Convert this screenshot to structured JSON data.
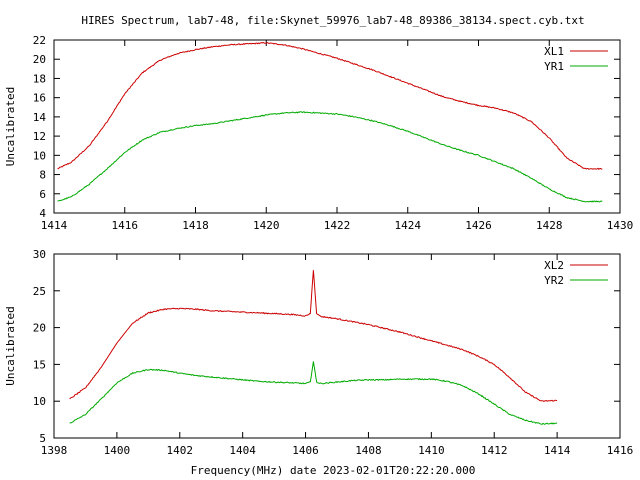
{
  "title": "HIRES Spectrum, lab7-48, file:Skynet_59976_lab7-48_89386_38134.spect.cyb.txt",
  "xlabel_bottom": "Frequency(MHz) date 2023-02-01T20:22:20.000",
  "chart_data": [
    {
      "type": "line",
      "ylabel": "Uncalibrated",
      "xlim": [
        1414,
        1430
      ],
      "ylim": [
        4,
        22
      ],
      "xticks": [
        1414,
        1416,
        1418,
        1420,
        1422,
        1424,
        1426,
        1428,
        1430
      ],
      "yticks": [
        4,
        6,
        8,
        10,
        12,
        14,
        16,
        18,
        20,
        22
      ],
      "legend_position": "top-right",
      "series": [
        {
          "name": "XL1",
          "color": "#cc0000",
          "x": [
            1414.1,
            1414.5,
            1415.0,
            1415.5,
            1416.0,
            1416.5,
            1417.0,
            1417.5,
            1418.0,
            1418.5,
            1419.0,
            1419.5,
            1420.0,
            1420.5,
            1421.0,
            1421.5,
            1422.0,
            1422.5,
            1423.0,
            1423.5,
            1424.0,
            1424.5,
            1425.0,
            1425.5,
            1426.0,
            1426.5,
            1427.0,
            1427.5,
            1428.0,
            1428.5,
            1429.0,
            1429.5
          ],
          "values": [
            8.6,
            9.3,
            11.0,
            13.5,
            16.4,
            18.6,
            19.9,
            20.6,
            21.0,
            21.3,
            21.5,
            21.6,
            21.7,
            21.5,
            21.1,
            20.6,
            20.1,
            19.5,
            18.9,
            18.2,
            17.5,
            16.8,
            16.1,
            15.6,
            15.2,
            14.9,
            14.4,
            13.5,
            11.8,
            9.7,
            8.6,
            8.6
          ]
        },
        {
          "name": "YR1",
          "color": "#00aa00",
          "x": [
            1414.1,
            1414.5,
            1415.0,
            1415.5,
            1416.0,
            1416.5,
            1417.0,
            1417.5,
            1418.0,
            1418.5,
            1419.0,
            1419.5,
            1420.0,
            1420.5,
            1421.0,
            1421.5,
            1422.0,
            1422.5,
            1423.0,
            1423.5,
            1424.0,
            1424.5,
            1425.0,
            1425.5,
            1426.0,
            1426.5,
            1427.0,
            1427.5,
            1428.0,
            1428.5,
            1429.0,
            1429.5
          ],
          "values": [
            5.2,
            5.7,
            7.0,
            8.6,
            10.3,
            11.6,
            12.4,
            12.8,
            13.1,
            13.3,
            13.6,
            13.9,
            14.2,
            14.4,
            14.5,
            14.4,
            14.3,
            14.0,
            13.6,
            13.1,
            12.5,
            11.8,
            11.1,
            10.5,
            10.0,
            9.3,
            8.6,
            7.6,
            6.5,
            5.6,
            5.2,
            5.2
          ]
        }
      ]
    },
    {
      "type": "line",
      "ylabel": "Uncalibrated",
      "xlabel": "Frequency(MHz) date 2023-02-01T20:22:20.000",
      "xlim": [
        1398,
        1416
      ],
      "ylim": [
        5,
        30
      ],
      "xticks": [
        1398,
        1400,
        1402,
        1404,
        1406,
        1408,
        1410,
        1412,
        1414,
        1416
      ],
      "yticks": [
        5,
        10,
        15,
        20,
        25,
        30
      ],
      "legend_position": "top-right",
      "series": [
        {
          "name": "XL2",
          "color": "#cc0000",
          "x": [
            1398.5,
            1399.0,
            1399.5,
            1400.0,
            1400.5,
            1401.0,
            1401.5,
            1402.0,
            1402.5,
            1403.0,
            1403.5,
            1404.0,
            1404.5,
            1405.0,
            1405.5,
            1406.0,
            1406.15,
            1406.25,
            1406.35,
            1406.5,
            1407.0,
            1407.5,
            1408.0,
            1408.5,
            1409.0,
            1409.5,
            1410.0,
            1410.5,
            1411.0,
            1411.5,
            1412.0,
            1412.5,
            1413.0,
            1413.5,
            1414.0
          ],
          "values": [
            10.3,
            11.8,
            14.6,
            17.9,
            20.6,
            22.0,
            22.5,
            22.6,
            22.5,
            22.3,
            22.2,
            22.1,
            22.0,
            21.9,
            21.8,
            21.6,
            21.9,
            27.8,
            21.9,
            21.5,
            21.2,
            20.8,
            20.4,
            19.9,
            19.4,
            18.8,
            18.2,
            17.6,
            17.0,
            16.1,
            15.0,
            13.2,
            11.2,
            10.0,
            10.1
          ]
        },
        {
          "name": "YR2",
          "color": "#00aa00",
          "x": [
            1398.5,
            1399.0,
            1399.5,
            1400.0,
            1400.5,
            1401.0,
            1401.5,
            1402.0,
            1402.5,
            1403.0,
            1403.5,
            1404.0,
            1404.5,
            1405.0,
            1405.5,
            1406.0,
            1406.15,
            1406.25,
            1406.35,
            1406.5,
            1407.0,
            1407.5,
            1408.0,
            1408.5,
            1409.0,
            1409.5,
            1410.0,
            1410.5,
            1411.0,
            1411.5,
            1412.0,
            1412.5,
            1413.0,
            1413.5,
            1414.0
          ],
          "values": [
            7.0,
            8.2,
            10.3,
            12.5,
            13.8,
            14.3,
            14.2,
            13.8,
            13.5,
            13.3,
            13.1,
            12.9,
            12.7,
            12.6,
            12.5,
            12.4,
            12.6,
            15.4,
            12.6,
            12.4,
            12.6,
            12.8,
            12.9,
            12.9,
            13.0,
            13.0,
            13.0,
            12.7,
            12.1,
            11.0,
            9.6,
            8.2,
            7.4,
            6.9,
            7.0
          ]
        }
      ]
    }
  ]
}
